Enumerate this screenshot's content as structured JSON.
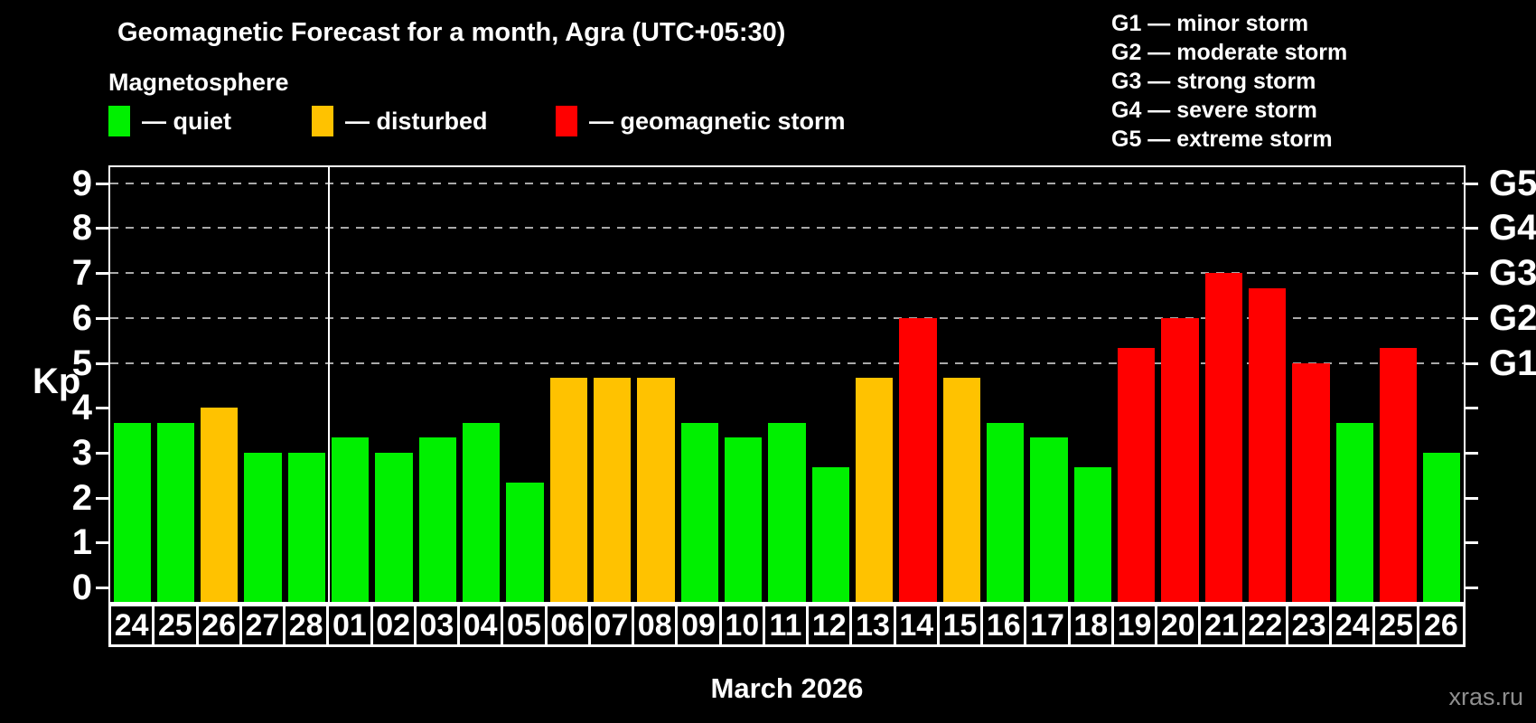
{
  "title": "Geomagnetic Forecast for a month, Agra (UTC+05:30)",
  "subtitle": "Magnetosphere",
  "legend": {
    "items": [
      {
        "key": "quiet",
        "label": "— quiet"
      },
      {
        "key": "disturbed",
        "label": "— disturbed"
      },
      {
        "key": "storm",
        "label": "— geomagnetic storm"
      }
    ]
  },
  "storm_scale_legend": [
    "G1 — minor storm",
    "G2 — moderate storm",
    "G3 — strong storm",
    "G4 — severe storm",
    "G5 — extreme storm"
  ],
  "colors": {
    "quiet": "#00f000",
    "disturbed": "#ffc200",
    "storm": "#ff0000"
  },
  "watermark": "xras.ru",
  "chart_data": {
    "type": "bar",
    "title": "Geomagnetic Forecast for a month, Agra (UTC+05:30)",
    "xlabel": "March 2026",
    "ylabel": "Kp",
    "ylim": [
      0,
      9
    ],
    "grid": "dashed horizontal gridlines at Kp 5,6,7,8,9 only",
    "legend_position": "top-left",
    "categories": [
      "24",
      "25",
      "26",
      "27",
      "28",
      "01",
      "02",
      "03",
      "04",
      "05",
      "06",
      "07",
      "08",
      "09",
      "10",
      "11",
      "12",
      "13",
      "14",
      "15",
      "16",
      "17",
      "18",
      "19",
      "20",
      "21",
      "22",
      "23",
      "24",
      "25",
      "26"
    ],
    "values": [
      3.67,
      3.67,
      4.0,
      3.0,
      3.0,
      3.33,
      3.0,
      3.33,
      3.67,
      2.33,
      4.67,
      4.67,
      4.67,
      3.67,
      3.33,
      3.67,
      2.67,
      4.67,
      6.0,
      4.67,
      3.67,
      3.33,
      2.67,
      5.33,
      6.0,
      7.0,
      6.67,
      5.0,
      3.67,
      5.33,
      3.0
    ],
    "statuses": [
      "quiet",
      "quiet",
      "disturbed",
      "quiet",
      "quiet",
      "quiet",
      "quiet",
      "quiet",
      "quiet",
      "quiet",
      "disturbed",
      "disturbed",
      "disturbed",
      "quiet",
      "quiet",
      "quiet",
      "quiet",
      "disturbed",
      "storm",
      "disturbed",
      "quiet",
      "quiet",
      "quiet",
      "storm",
      "storm",
      "storm",
      "storm",
      "storm",
      "quiet",
      "storm",
      "quiet"
    ],
    "kp_ticks": [
      0,
      1,
      2,
      3,
      4,
      5,
      6,
      7,
      8,
      9
    ],
    "g_axis_labels": [
      {
        "kp": 5,
        "label": "G1"
      },
      {
        "kp": 6,
        "label": "G2"
      },
      {
        "kp": 7,
        "label": "G3"
      },
      {
        "kp": 8,
        "label": "G4"
      },
      {
        "kp": 9,
        "label": "G5"
      }
    ],
    "month_boundary_after_index": 4
  }
}
